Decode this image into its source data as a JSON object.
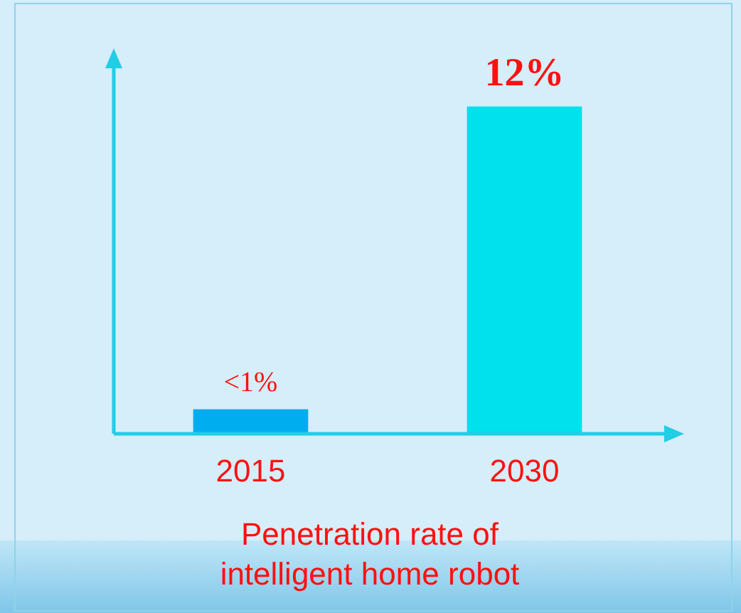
{
  "chart_data": {
    "type": "bar",
    "title": "Penetration rate of intelligent home robot",
    "categories": [
      "2015",
      "2030"
    ],
    "values": [
      0.9,
      12
    ],
    "colors": [
      "#00aeef",
      "#00e1ee"
    ],
    "value_labels": [
      "<1%",
      "12%"
    ],
    "legend": false,
    "grid": false
  }
}
